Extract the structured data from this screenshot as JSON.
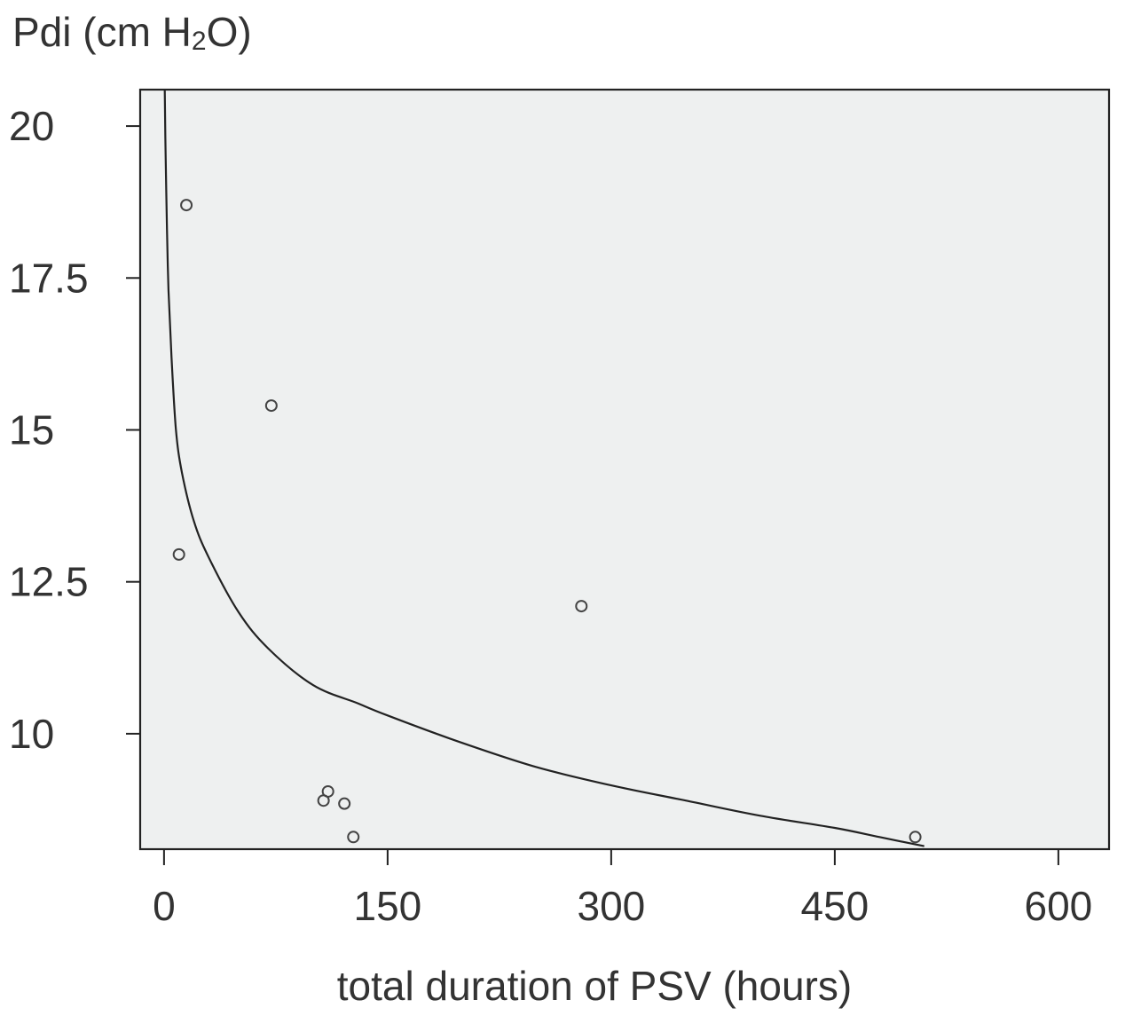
{
  "chart_data": {
    "type": "scatter",
    "ylabel": "Pdi (cm H2O)",
    "ylabel_parts": {
      "prefix": "Pdi (cm H",
      "subscript": "2",
      "suffix": "O)"
    },
    "xlabel": "total duration of PSV (hours)",
    "xlim": [
      -16,
      634
    ],
    "ylim": [
      8.1,
      20.6
    ],
    "x_ticks": [
      0,
      150,
      300,
      450,
      600
    ],
    "x_tick_labels": [
      "0",
      "150",
      "300",
      "450",
      "600"
    ],
    "y_ticks": [
      10,
      12.5,
      15,
      17.5,
      20
    ],
    "y_tick_labels": [
      "10",
      "12.5",
      "15",
      "17.5",
      "20"
    ],
    "grid": false,
    "background_color": "#eef0f0",
    "points": [
      {
        "x": 15,
        "y": 18.7
      },
      {
        "x": 72,
        "y": 15.4
      },
      {
        "x": 10,
        "y": 12.95
      },
      {
        "x": 280,
        "y": 12.1
      },
      {
        "x": 107,
        "y": 8.9
      },
      {
        "x": 110,
        "y": 9.05
      },
      {
        "x": 121,
        "y": 8.85
      },
      {
        "x": 127,
        "y": 8.3
      },
      {
        "x": 504,
        "y": 8.3
      }
    ],
    "fit_curve": {
      "type": "smooth-line",
      "points": [
        [
          0.5,
          20.6
        ],
        [
          1,
          19.6
        ],
        [
          2,
          18.3
        ],
        [
          3,
          17.3
        ],
        [
          5,
          16.2
        ],
        [
          8,
          15.0
        ],
        [
          12,
          14.3
        ],
        [
          20,
          13.5
        ],
        [
          30,
          12.9
        ],
        [
          50,
          12.0
        ],
        [
          70,
          11.4
        ],
        [
          100,
          10.8
        ],
        [
          130,
          10.5
        ],
        [
          150,
          10.3
        ],
        [
          200,
          9.85
        ],
        [
          250,
          9.45
        ],
        [
          300,
          9.15
        ],
        [
          350,
          8.9
        ],
        [
          400,
          8.65
        ],
        [
          450,
          8.45
        ],
        [
          480,
          8.3
        ],
        [
          500,
          8.2
        ],
        [
          510,
          8.15
        ]
      ]
    }
  }
}
